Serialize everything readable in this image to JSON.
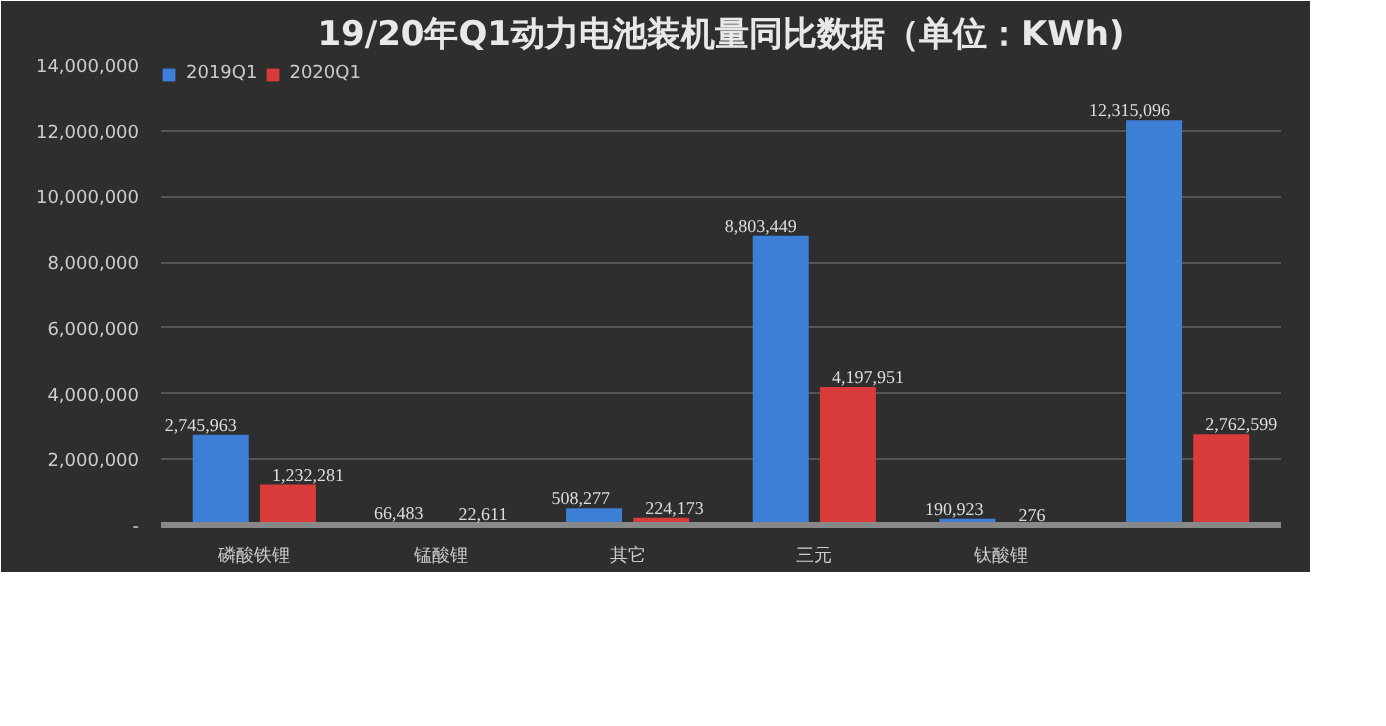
{
  "chart_data": {
    "type": "bar",
    "title": "19/20年Q1动力电池装机量同比数据（单位：KWh)",
    "categories": [
      "磷酸铁锂",
      "锰酸锂",
      "其它",
      "三元",
      "钛酸锂",
      null
    ],
    "series": [
      {
        "name": "2019Q1",
        "color": "#3d7fd6",
        "values": [
          2745963,
          66483,
          508277,
          8803449,
          190923,
          12315096
        ],
        "value_labels": [
          "2,745,963",
          "66,483",
          "508,277",
          "8,803,449",
          "190,923",
          "12,315,096"
        ]
      },
      {
        "name": "2020Q1",
        "color": "#d93a3a",
        "values": [
          1232281,
          22611,
          224173,
          4197951,
          276,
          2762599
        ],
        "value_labels": [
          "1,232,281",
          "22,611",
          "224,173",
          "4,197,951",
          "276",
          "2,762,599"
        ]
      }
    ],
    "ylim": [
      0,
      14000000
    ],
    "yticks": [
      {
        "value": 0,
        "label": "-"
      },
      {
        "value": 2000000,
        "label": "2,000,000"
      },
      {
        "value": 4000000,
        "label": "4,000,000"
      },
      {
        "value": 6000000,
        "label": "6,000,000"
      },
      {
        "value": 8000000,
        "label": "8,000,000"
      },
      {
        "value": 10000000,
        "label": "10,000,000"
      },
      {
        "value": 12000000,
        "label": "12,000,000"
      },
      {
        "value": 14000000,
        "label": "14,000,000"
      }
    ],
    "grid": "y",
    "legend": "top left"
  }
}
